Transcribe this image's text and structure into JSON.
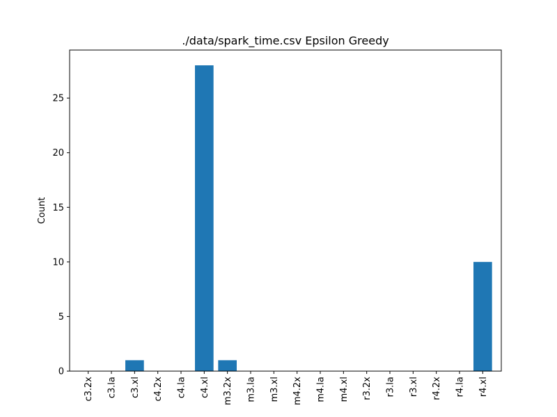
{
  "chart_data": {
    "type": "bar",
    "title": "./data/spark_time.csv Epsilon Greedy",
    "xlabel": "",
    "ylabel": "Count",
    "categories": [
      "c3.2x",
      "c3.la",
      "c3.xl",
      "c4.2x",
      "c4.la",
      "c4.xl",
      "m3.2x",
      "m3.la",
      "m3.xl",
      "m4.2x",
      "m4.la",
      "m4.xl",
      "r3.2x",
      "r3.la",
      "r3.xl",
      "r4.2x",
      "r4.la",
      "r4.xl"
    ],
    "values": [
      0,
      0,
      1,
      0,
      0,
      28,
      1,
      0,
      0,
      0,
      0,
      0,
      0,
      0,
      0,
      0,
      0,
      10
    ],
    "yticks": [
      0,
      5,
      10,
      15,
      20,
      25
    ],
    "ylim": [
      0,
      29.4
    ],
    "grid": false,
    "bar_color": "#1f77b4"
  }
}
